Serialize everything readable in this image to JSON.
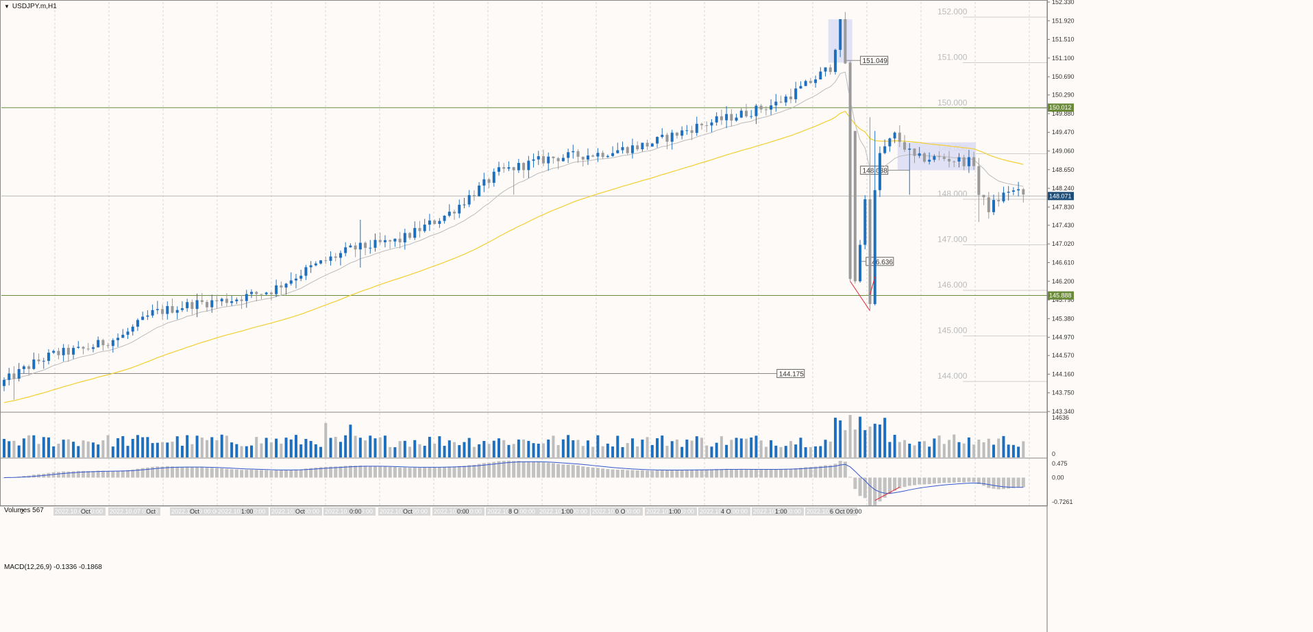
{
  "header": {
    "symbol_label": "USDJPY.m,H1"
  },
  "colors": {
    "background": "#fdfaf7",
    "bull_candle": "#1f6fbf",
    "bear_candle": "#9a9a9a",
    "ema_fast": "#bcbcbc",
    "ema_slow": "#f3cf2f",
    "hline": "#6a8a3a",
    "volume_up": "#1f6fbf",
    "volume_down": "#bdbdbd",
    "macd_line": "#3355cc",
    "macd_hist": "#c2c2c2",
    "axis_text": "#333333",
    "overlay_text": "#bbbbbb",
    "arrow": "#dd2233",
    "highlight": "#dcdcf4"
  },
  "chart_data": [
    {
      "type": "candlestick",
      "pane": "price",
      "title": "USDJPY.m,H1",
      "ylim": [
        143.34,
        152.33
      ],
      "y_ticks": [
        152.33,
        151.92,
        151.51,
        151.1,
        150.69,
        150.29,
        149.88,
        149.47,
        149.06,
        148.65,
        148.24,
        147.83,
        147.43,
        147.02,
        146.61,
        146.2,
        145.79,
        145.38,
        144.97,
        144.57,
        144.16,
        143.75,
        143.34
      ],
      "x_labels": [
        "2",
        "2022.10.06 00:00",
        "Oct",
        "2022.10.07 00:00",
        "Oct",
        "2022.10.10 00:00",
        "Oct",
        "2022.10.11 00:00",
        "1:00",
        "2022.10.12 00:00",
        "Oct",
        "2022.10.13 00:00",
        "0:00",
        "2022.10.14 00:00",
        "Oct",
        "2022.10.17 00:00",
        "0:00",
        "2022.10.18 00:00",
        "8 O",
        "2022.10.19 00:00",
        "1:00",
        "2022.10.20 00:00",
        "0 O",
        "2022.10.21 00:00",
        "1:00",
        "2022.10.24 00:00",
        "4 O",
        "2022.10.25 00:00",
        "1:00",
        "2022.10.26 00:00",
        "6 Oct 09:00"
      ],
      "key_path": [
        [
          0,
          144.0
        ],
        [
          6,
          144.4
        ],
        [
          10,
          144.6
        ],
        [
          16,
          144.7
        ],
        [
          24,
          145.0
        ],
        [
          30,
          145.5
        ],
        [
          38,
          145.7
        ],
        [
          46,
          145.8
        ],
        [
          54,
          146.0
        ],
        [
          62,
          146.5
        ],
        [
          70,
          146.9
        ],
        [
          80,
          147.1
        ],
        [
          90,
          147.7
        ],
        [
          100,
          148.6
        ],
        [
          110,
          148.9
        ],
        [
          120,
          149.0
        ],
        [
          130,
          149.2
        ],
        [
          140,
          149.6
        ],
        [
          150,
          149.9
        ],
        [
          156,
          150.1
        ],
        [
          162,
          150.5
        ],
        [
          167,
          150.9
        ],
        [
          169,
          151.85
        ],
        [
          170,
          151.0
        ],
        [
          171,
          149.5
        ],
        [
          172,
          146.2
        ],
        [
          173,
          147.0
        ],
        [
          174,
          148.0
        ],
        [
          175,
          145.7
        ],
        [
          176,
          148.2
        ],
        [
          177,
          149.0
        ],
        [
          180,
          149.4
        ],
        [
          184,
          148.9
        ],
        [
          190,
          148.9
        ],
        [
          196,
          148.8
        ],
        [
          197,
          148.1
        ],
        [
          199,
          147.8
        ],
        [
          203,
          148.2
        ],
        [
          206,
          148.1
        ]
      ],
      "series": [
        {
          "name": "",
          "kind": "ema_fast"
        },
        {
          "name": "",
          "kind": "ema_slow"
        }
      ],
      "horizontal_lines": [
        {
          "value": 150.012,
          "label": "150.012",
          "style": "solid"
        },
        {
          "value": 145.888,
          "label": "145.888",
          "style": "solid"
        },
        {
          "value": 148.071,
          "label": "148.071",
          "style": "current"
        }
      ],
      "level_labels": [
        {
          "value": 151.049,
          "label": "151.049",
          "from_bar": 170
        },
        {
          "value": 148.638,
          "label": "148.638",
          "from_bar": 183
        },
        {
          "value": 146.636,
          "label": "146.636",
          "from_bar": 173
        },
        {
          "value": 144.175,
          "label": "144.175",
          "from_bar": 3
        }
      ],
      "round_levels": [
        "152.000",
        "151.000",
        "150.000",
        "149.000",
        "148.000",
        "147.000",
        "146.000",
        "145.000",
        "144.000"
      ],
      "highlight_boxes": [
        {
          "from_bar": 167,
          "to_bar": 171,
          "low": 151.0,
          "high": 151.95
        },
        {
          "from_bar": 181,
          "to_bar": 196,
          "low": 148.638,
          "high": 149.25
        }
      ],
      "arrows": [
        {
          "from": [
            171,
            146.2
          ],
          "to": [
            175,
            145.55
          ]
        },
        {
          "from": [
            175,
            145.9
          ],
          "to": [
            176,
            146.3
          ]
        }
      ]
    },
    {
      "type": "bar",
      "pane": "volume",
      "title": "Volumes 567",
      "ylim": [
        0,
        14636
      ],
      "y_ticks": [
        "14636",
        "0"
      ]
    },
    {
      "type": "bar",
      "pane": "macd",
      "title": "MACD(12,26,9) -0.1336 -0.1868",
      "ylim": [
        -0.7261,
        0.475
      ],
      "y_ticks": [
        "0.475",
        "0.00",
        "-0.7261"
      ]
    }
  ]
}
